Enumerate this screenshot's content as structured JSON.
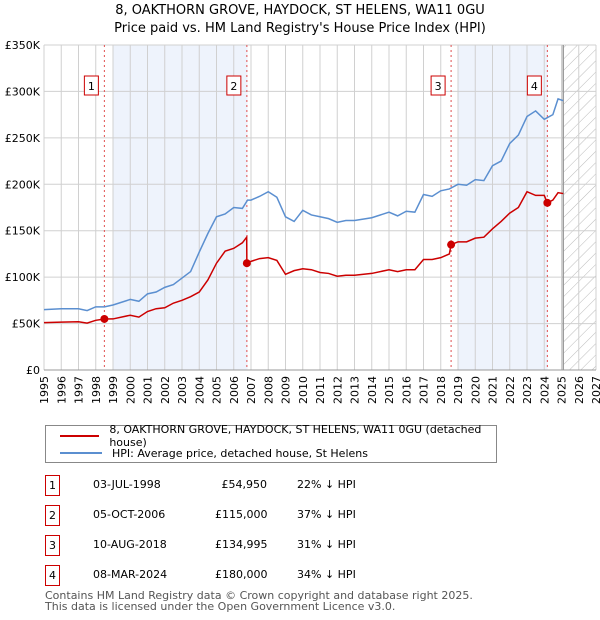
{
  "title": "8, OAKTHORN GROVE, HAYDOCK, ST HELENS, WA11 0GU",
  "subtitle": "Price paid vs. HM Land Registry's House Price Index (HPI)",
  "chart_data": {
    "type": "line",
    "xlim": [
      1995,
      2027
    ],
    "ylim": [
      0,
      350000
    ],
    "x_ticks": [
      "1995",
      "1996",
      "1997",
      "1998",
      "1999",
      "2000",
      "2001",
      "2002",
      "2003",
      "2004",
      "2005",
      "2006",
      "2007",
      "2008",
      "2009",
      "2010",
      "2011",
      "2012",
      "2013",
      "2014",
      "2015",
      "2016",
      "2017",
      "2018",
      "2019",
      "2020",
      "2021",
      "2022",
      "2023",
      "2024",
      "2025",
      "2026",
      "2027"
    ],
    "y_ticks": [
      {
        "v": 0,
        "label": "£0"
      },
      {
        "v": 50000,
        "label": "£50K"
      },
      {
        "v": 100000,
        "label": "£100K"
      },
      {
        "v": 150000,
        "label": "£150K"
      },
      {
        "v": 200000,
        "label": "£200K"
      },
      {
        "v": 250000,
        "label": "£250K"
      },
      {
        "v": 300000,
        "label": "£300K"
      },
      {
        "v": 350000,
        "label": "£350K"
      }
    ],
    "shaded_ranges": [
      [
        1999,
        2006.8
      ],
      [
        2019,
        2024.2
      ]
    ],
    "forecast_from": 2025.1,
    "series": [
      {
        "name": "8, OAKTHORN GROVE, HAYDOCK, ST HELENS, WA11 0GU (detached house)",
        "color": "#cc0000",
        "x": [
          1995,
          1996,
          1997,
          1997.5,
          1998,
          1998.5,
          1999,
          2000,
          2000.5,
          2001,
          2001.5,
          2002,
          2002.5,
          2003,
          2003.5,
          2004,
          2004.5,
          2005,
          2005.5,
          2006,
          2006.5,
          2006.75,
          2006.76,
          2007,
          2007.5,
          2008,
          2008.5,
          2009,
          2009.5,
          2010,
          2010.5,
          2011,
          2011.5,
          2012,
          2012.5,
          2013,
          2014,
          2015,
          2015.5,
          2016,
          2016.5,
          2017,
          2017.5,
          2018,
          2018.5,
          2018.6,
          2019,
          2019.5,
          2020,
          2020.5,
          2021,
          2021.5,
          2022,
          2022.5,
          2023,
          2023.5,
          2024,
          2024.18,
          2024.5,
          2024.8,
          2025.1
        ],
        "y": [
          51000,
          51500,
          52000,
          50500,
          53500,
          54950,
          55000,
          59000,
          57000,
          63000,
          66000,
          67000,
          72000,
          75000,
          79000,
          84000,
          97000,
          115000,
          128000,
          131000,
          137000,
          143000,
          115000,
          117000,
          120000,
          121000,
          118000,
          103000,
          107000,
          109000,
          108000,
          105000,
          104000,
          101000,
          102000,
          102000,
          104000,
          108000,
          106000,
          108000,
          108000,
          119000,
          119000,
          121000,
          125000,
          134995,
          138000,
          138000,
          142000,
          143000,
          152000,
          160000,
          169000,
          175000,
          192000,
          188000,
          188000,
          180000,
          183000,
          191000,
          190000
        ]
      },
      {
        "name": "HPI: Average price, detached house, St Helens",
        "color": "#5b8fd0",
        "x": [
          1995,
          1996,
          1997,
          1997.5,
          1998,
          1998.5,
          1999,
          2000,
          2000.5,
          2001,
          2001.5,
          2002,
          2002.5,
          2003,
          2003.5,
          2004,
          2004.5,
          2005,
          2005.5,
          2006,
          2006.5,
          2006.8,
          2007,
          2007.5,
          2008,
          2008.5,
          2009,
          2009.5,
          2010,
          2010.5,
          2011,
          2011.5,
          2012,
          2012.5,
          2013,
          2014,
          2015,
          2015.5,
          2016,
          2016.5,
          2017,
          2017.5,
          2018,
          2018.5,
          2019,
          2019.5,
          2020,
          2020.5,
          2021,
          2021.5,
          2022,
          2022.5,
          2023,
          2023.5,
          2024,
          2024.5,
          2024.8,
          2025.1
        ],
        "y": [
          65000,
          66000,
          66000,
          64000,
          68000,
          68000,
          70000,
          76000,
          74000,
          82000,
          84000,
          89000,
          92000,
          99000,
          106000,
          127000,
          147000,
          165000,
          168000,
          175000,
          174000,
          183000,
          183000,
          187000,
          192000,
          186000,
          165000,
          160000,
          172000,
          167000,
          165000,
          163000,
          159000,
          161000,
          161000,
          164000,
          170000,
          166000,
          171000,
          170000,
          189000,
          187000,
          193000,
          195000,
          200000,
          199000,
          205000,
          204000,
          220000,
          225000,
          244000,
          253000,
          273000,
          279000,
          270000,
          275000,
          292000,
          290000
        ]
      }
    ],
    "sales": [
      {
        "label": "1",
        "x": 1998.5,
        "y": 54950
      },
      {
        "label": "2",
        "x": 2006.76,
        "y": 115000
      },
      {
        "label": "3",
        "x": 2018.6,
        "y": 134995
      },
      {
        "label": "4",
        "x": 2024.18,
        "y": 180000
      }
    ]
  },
  "legend": {
    "property": "8, OAKTHORN GROVE, HAYDOCK, ST HELENS, WA11 0GU (detached house)",
    "hpi": "HPI: Average price, detached house, St Helens"
  },
  "sales_table": [
    {
      "num": "1",
      "date": "03-JUL-1998",
      "price": "£54,950",
      "hpi": "22% ↓ HPI"
    },
    {
      "num": "2",
      "date": "05-OCT-2006",
      "price": "£115,000",
      "hpi": "37% ↓ HPI"
    },
    {
      "num": "3",
      "date": "10-AUG-2018",
      "price": "£134,995",
      "hpi": "31% ↓ HPI"
    },
    {
      "num": "4",
      "date": "08-MAR-2024",
      "price": "£180,000",
      "hpi": "34% ↓ HPI"
    }
  ],
  "footer": {
    "line1": "Contains HM Land Registry data © Crown copyright and database right 2025.",
    "line2": "This data is licensed under the Open Government Licence v3.0."
  }
}
